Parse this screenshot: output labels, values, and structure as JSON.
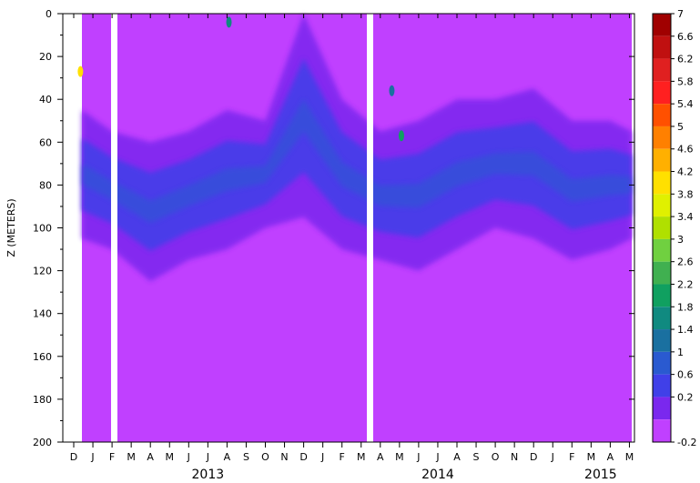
{
  "chart_data": {
    "type": "heatmap",
    "title": "",
    "ylabel": "Z (METERS)",
    "yaxis": {
      "range": [
        0,
        200
      ],
      "reversed": true,
      "ticks": [
        0,
        20,
        40,
        60,
        80,
        100,
        120,
        140,
        160,
        180,
        200
      ]
    },
    "xaxis": {
      "month_ticks": [
        "D",
        "J",
        "F",
        "M",
        "A",
        "M",
        "J",
        "J",
        "A",
        "S",
        "O",
        "N",
        "D",
        "J",
        "F",
        "M",
        "A",
        "M",
        "J",
        "J",
        "A",
        "S",
        "O",
        "N",
        "D",
        "J",
        "F",
        "M",
        "A",
        "M"
      ],
      "years": [
        {
          "label": "2013",
          "month_index_center": 7
        },
        {
          "label": "2014",
          "month_index_center": 19
        },
        {
          "label": "2015",
          "month_index_center": 27.5
        }
      ]
    },
    "data_gaps_month_index": [
      2,
      15
    ],
    "colorbar": {
      "labels": [
        "7",
        "6.6",
        "6.2",
        "5.8",
        "5.4",
        "5",
        "4.6",
        "4.2",
        "3.8",
        "3.4",
        "3",
        "2.6",
        "2.2",
        "1.8",
        "1.4",
        "1",
        "0.6",
        "0.2",
        "-0.2"
      ],
      "colors": [
        "#a00000",
        "#c01010",
        "#e02020",
        "#ff2020",
        "#ff5000",
        "#ff8000",
        "#ffb000",
        "#ffe000",
        "#e0f000",
        "#b0e000",
        "#70d040",
        "#40b050",
        "#10a060",
        "#108a80",
        "#1a70a0",
        "#2a5ad0",
        "#4040e8",
        "#7a28ee",
        "#c040ff"
      ]
    },
    "background_value": "-0.2",
    "band_profile": [
      {
        "month_index": 0,
        "top": 45,
        "bottom": 105
      },
      {
        "month_index": 2,
        "top": 55,
        "bottom": 110
      },
      {
        "month_index": 4,
        "top": 60,
        "bottom": 125
      },
      {
        "month_index": 6,
        "top": 55,
        "bottom": 115
      },
      {
        "month_index": 8,
        "top": 45,
        "bottom": 110
      },
      {
        "month_index": 10,
        "top": 50,
        "bottom": 100
      },
      {
        "month_index": 12,
        "top": 0,
        "bottom": 95
      },
      {
        "month_index": 14,
        "top": 40,
        "bottom": 110
      },
      {
        "month_index": 16,
        "top": 55,
        "bottom": 115
      },
      {
        "month_index": 18,
        "top": 50,
        "bottom": 120
      },
      {
        "month_index": 20,
        "top": 40,
        "bottom": 110
      },
      {
        "month_index": 22,
        "top": 40,
        "bottom": 100
      },
      {
        "month_index": 24,
        "top": 35,
        "bottom": 105
      },
      {
        "month_index": 26,
        "top": 50,
        "bottom": 115
      },
      {
        "month_index": 28,
        "top": 50,
        "bottom": 110
      },
      {
        "month_index": 29.3,
        "top": 55,
        "bottom": 105
      }
    ],
    "hotspots": [
      {
        "month_index": 17.1,
        "z": 57,
        "value": 2.2
      },
      {
        "month_index": 16.6,
        "z": 36,
        "value": 1.4
      },
      {
        "month_index": 8.1,
        "z": 4,
        "value": 1.8
      },
      {
        "month_index": 0.35,
        "z": 27,
        "value": 4.2
      }
    ],
    "grid": false,
    "legend": "right colorbar"
  }
}
